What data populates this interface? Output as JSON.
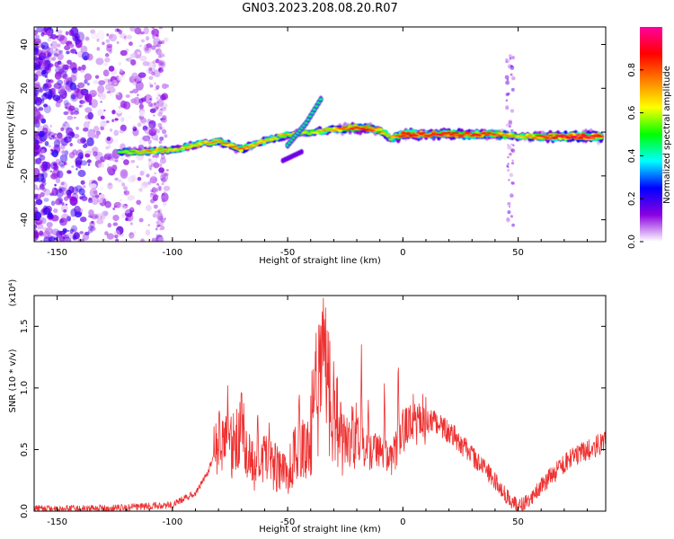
{
  "title": "GN03.2023.208.08.20.R07",
  "chart_data": [
    {
      "type": "heatmap",
      "xlabel": "Height of straight line (km)",
      "ylabel": "Frequency (Hz)",
      "xlim": [
        -160,
        88
      ],
      "ylim": [
        -50,
        48
      ],
      "xticks": [
        -150,
        -100,
        -50,
        0,
        50
      ],
      "yticks": [
        -40,
        -20,
        0,
        20,
        40
      ],
      "colorbar": {
        "label": "Normalized spectral amplitude",
        "range": [
          0,
          1
        ],
        "ticks": [
          "0.0",
          "0.2",
          "0.4",
          "0.6",
          "0.8"
        ],
        "colormap": [
          "#ffffff",
          "#8a00e0",
          "#0000ff",
          "#00ffff",
          "#00ff00",
          "#ffff00",
          "#ff8000",
          "#ff0000",
          "#ff00a0"
        ]
      },
      "ridge": {
        "x": [
          -120,
          -110,
          -100,
          -90,
          -80,
          -70,
          -60,
          -50,
          -40,
          -30,
          -20,
          -10,
          -5,
          0,
          10,
          20,
          30,
          40,
          50,
          60,
          70,
          80,
          88
        ],
        "y": [
          -9,
          -9,
          -8,
          -6,
          -4,
          -8,
          -4,
          -1,
          0,
          1,
          2,
          1,
          -3,
          -1,
          -1,
          -1,
          -1,
          -1,
          -2,
          -2,
          -2,
          -2,
          -2
        ],
        "amplitude": [
          0.4,
          0.55,
          0.5,
          0.5,
          0.55,
          0.6,
          0.5,
          0.5,
          0.45,
          0.55,
          0.7,
          0.6,
          0.5,
          0.75,
          0.7,
          0.7,
          0.7,
          0.65,
          0.5,
          0.65,
          0.75,
          0.8,
          0.7
        ]
      },
      "branch": {
        "x": [
          -50,
          -42,
          -35
        ],
        "y": [
          -6,
          4,
          16
        ]
      }
    },
    {
      "type": "line",
      "ylabel": "SNR (10 * v/v)",
      "xlabel": "Height of straight line (km)",
      "multiplier": "(x10⁴)",
      "xlim": [
        -160,
        88
      ],
      "ylim": [
        0,
        1.75
      ],
      "xticks": [
        -150,
        -100,
        -50,
        0,
        50
      ],
      "yticks": [
        "0.0",
        "0.5",
        "1.0",
        "1.5"
      ],
      "color": "#ee3030",
      "envelope": {
        "x": [
          -160,
          -130,
          -110,
          -100,
          -90,
          -85,
          -80,
          -75,
          -70,
          -65,
          -60,
          -55,
          -50,
          -45,
          -40,
          -38,
          -35,
          -32,
          -30,
          -25,
          -20,
          -15,
          -10,
          -5,
          0,
          5,
          10,
          15,
          20,
          25,
          30,
          35,
          40,
          45,
          50,
          55,
          60,
          65,
          70,
          75,
          80,
          88
        ],
        "y": [
          0.02,
          0.02,
          0.04,
          0.05,
          0.15,
          0.3,
          0.55,
          0.5,
          0.65,
          0.35,
          0.4,
          0.35,
          0.3,
          0.55,
          0.5,
          0.7,
          0.9,
          0.7,
          0.5,
          0.55,
          0.6,
          0.45,
          0.5,
          0.4,
          0.65,
          0.75,
          0.75,
          0.7,
          0.65,
          0.55,
          0.45,
          0.35,
          0.25,
          0.12,
          0.03,
          0.1,
          0.2,
          0.3,
          0.38,
          0.45,
          0.5,
          0.56
        ]
      },
      "peaks": [
        {
          "x": -78,
          "y": 0.8
        },
        {
          "x": -76,
          "y": 1.1
        },
        {
          "x": -70,
          "y": 1.13
        },
        {
          "x": -63,
          "y": 0.9
        },
        {
          "x": -58,
          "y": 0.8
        },
        {
          "x": -45,
          "y": 1.17
        },
        {
          "x": -38,
          "y": 1.5
        },
        {
          "x": -35,
          "y": 1.65
        },
        {
          "x": -34,
          "y": 1.75
        },
        {
          "x": -30,
          "y": 1.3
        },
        {
          "x": -27,
          "y": 1.0
        },
        {
          "x": -18,
          "y": 1.4
        },
        {
          "x": -15,
          "y": 1.0
        },
        {
          "x": -8,
          "y": 1.12
        },
        {
          "x": -2,
          "y": 1.35
        },
        {
          "x": 7,
          "y": 0.95
        }
      ]
    }
  ]
}
